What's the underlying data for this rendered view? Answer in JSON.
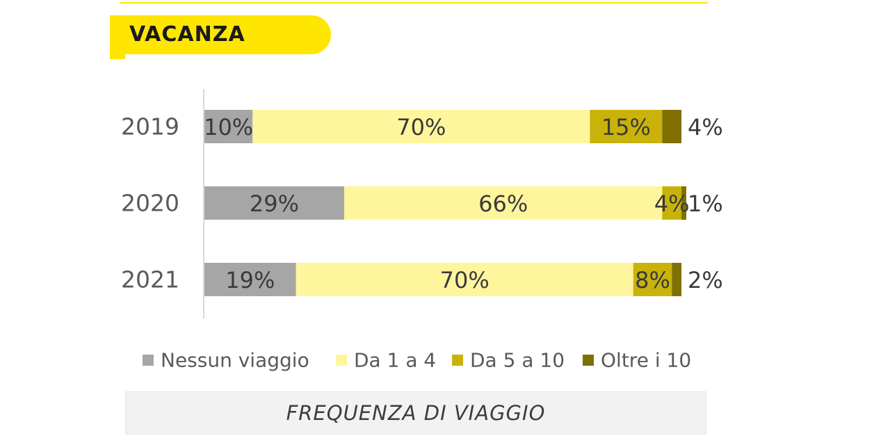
{
  "section_title": "VACANZA",
  "footer_caption": "FREQUENZA DI VIAGGIO",
  "chart_data": {
    "type": "bar",
    "orientation": "horizontal",
    "stacked": true,
    "normalized": true,
    "categories": [
      "2019",
      "2020",
      "2021"
    ],
    "series": [
      {
        "name": "Nessun viaggio",
        "values": [
          10,
          29,
          19
        ],
        "labels": [
          "10%",
          "29%",
          "19%"
        ],
        "color": "#a6a6a6",
        "label_color": "#3a3a3a"
      },
      {
        "name": "Da 1 a 4",
        "values": [
          70,
          66,
          70
        ],
        "labels": [
          "70%",
          "66%",
          "70%"
        ],
        "color": "#fff59d",
        "label_color": "#3a3a3a"
      },
      {
        "name": "Da 5 a 10",
        "values": [
          15,
          4,
          8
        ],
        "labels": [
          "15%",
          "4%",
          "8%"
        ],
        "color": "#c9b30a",
        "label_color": "#3a3a3a"
      },
      {
        "name": "Oltre i 10",
        "values": [
          4,
          1,
          2
        ],
        "labels": [
          "4%",
          "1%",
          "2%"
        ],
        "color": "#7f7000",
        "label_color": "#3a3a3a"
      }
    ],
    "title": "",
    "xlabel": "",
    "ylabel": "",
    "grid": false,
    "legend_position": "bottom"
  }
}
